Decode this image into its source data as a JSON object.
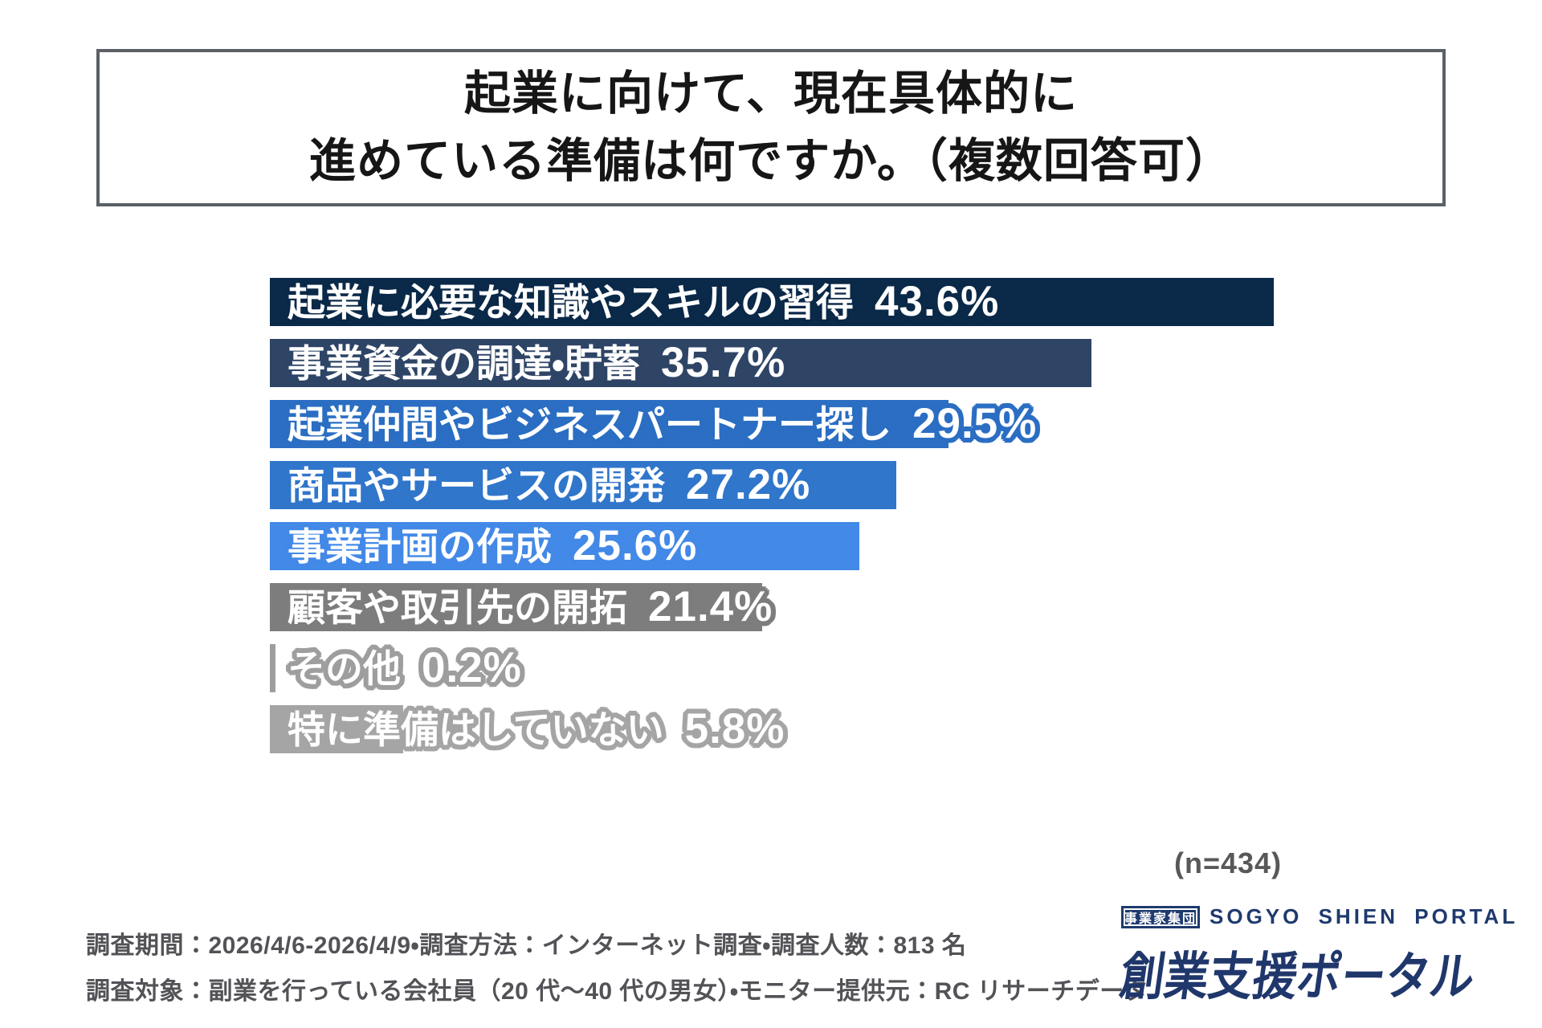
{
  "title_box": {
    "line1": "起業に向けて、現在具体的に",
    "line2": "進めている準備は何ですか。（複数回答可）",
    "border_color": "#5a6065"
  },
  "chart_data": {
    "type": "bar",
    "orientation": "horizontal",
    "unit": "percent",
    "title": "起業に向けて、現在具体的に進めている準備は何ですか。（複数回答可）",
    "sample_note": "(n=434)",
    "xlim": [
      0,
      45
    ],
    "grid": false,
    "legend": false,
    "categories": [
      "起業に必要な知識やスキルの習得",
      "事業資金の調達・貯蓄",
      "起業仲間やビジネスパートナー探し",
      "商品やサービスの開発",
      "事業計画の作成",
      "顧客や取引先の開拓",
      "その他",
      "特に準備はしていない"
    ],
    "values": [
      43.6,
      35.7,
      29.5,
      27.2,
      25.6,
      21.4,
      0.2,
      5.8
    ],
    "items": [
      {
        "label": "起業に必要な知識やスキルの習得",
        "value": 43.6,
        "display": "43.6%",
        "color": "#0b2948"
      },
      {
        "label": "事業資金の調達・貯蓄",
        "value": 35.7,
        "display": "35.7%",
        "color": "#2f4566"
      },
      {
        "label": "起業仲間やビジネスパートナー探し",
        "value": 29.5,
        "display": "29.5%",
        "color": "#2b6ec3"
      },
      {
        "label": "商品やサービスの開発",
        "value": 27.2,
        "display": "27.2%",
        "color": "#3076cb"
      },
      {
        "label": "事業計画の作成",
        "value": 25.6,
        "display": "25.6%",
        "color": "#4389e7"
      },
      {
        "label": "顧客や取引先の開拓",
        "value": 21.4,
        "display": "21.4%",
        "color": "#7d7d7d"
      },
      {
        "label": "その他",
        "value": 0.2,
        "display": "0.2%",
        "color": "#9e9e9e"
      },
      {
        "label": "特に準備はしていない",
        "value": 5.8,
        "display": "5.8%",
        "color": "#a5a5a5"
      }
    ]
  },
  "footer": {
    "note_line1": "調査期間：2026/4/6-2026/4/9・調査方法：インターネット調査・調査人数：813 名",
    "note_line2": "調査対象：副業を行っている会社員（20 代〜40 代の男女）・モニター提供元：RC リサーチデータ",
    "logo": {
      "badge": "事業家集団",
      "name_en": "SOGYO SHIEN PORTAL",
      "name_jp": "創業支援ポータル",
      "brand_color": "#1e3a6e"
    }
  }
}
